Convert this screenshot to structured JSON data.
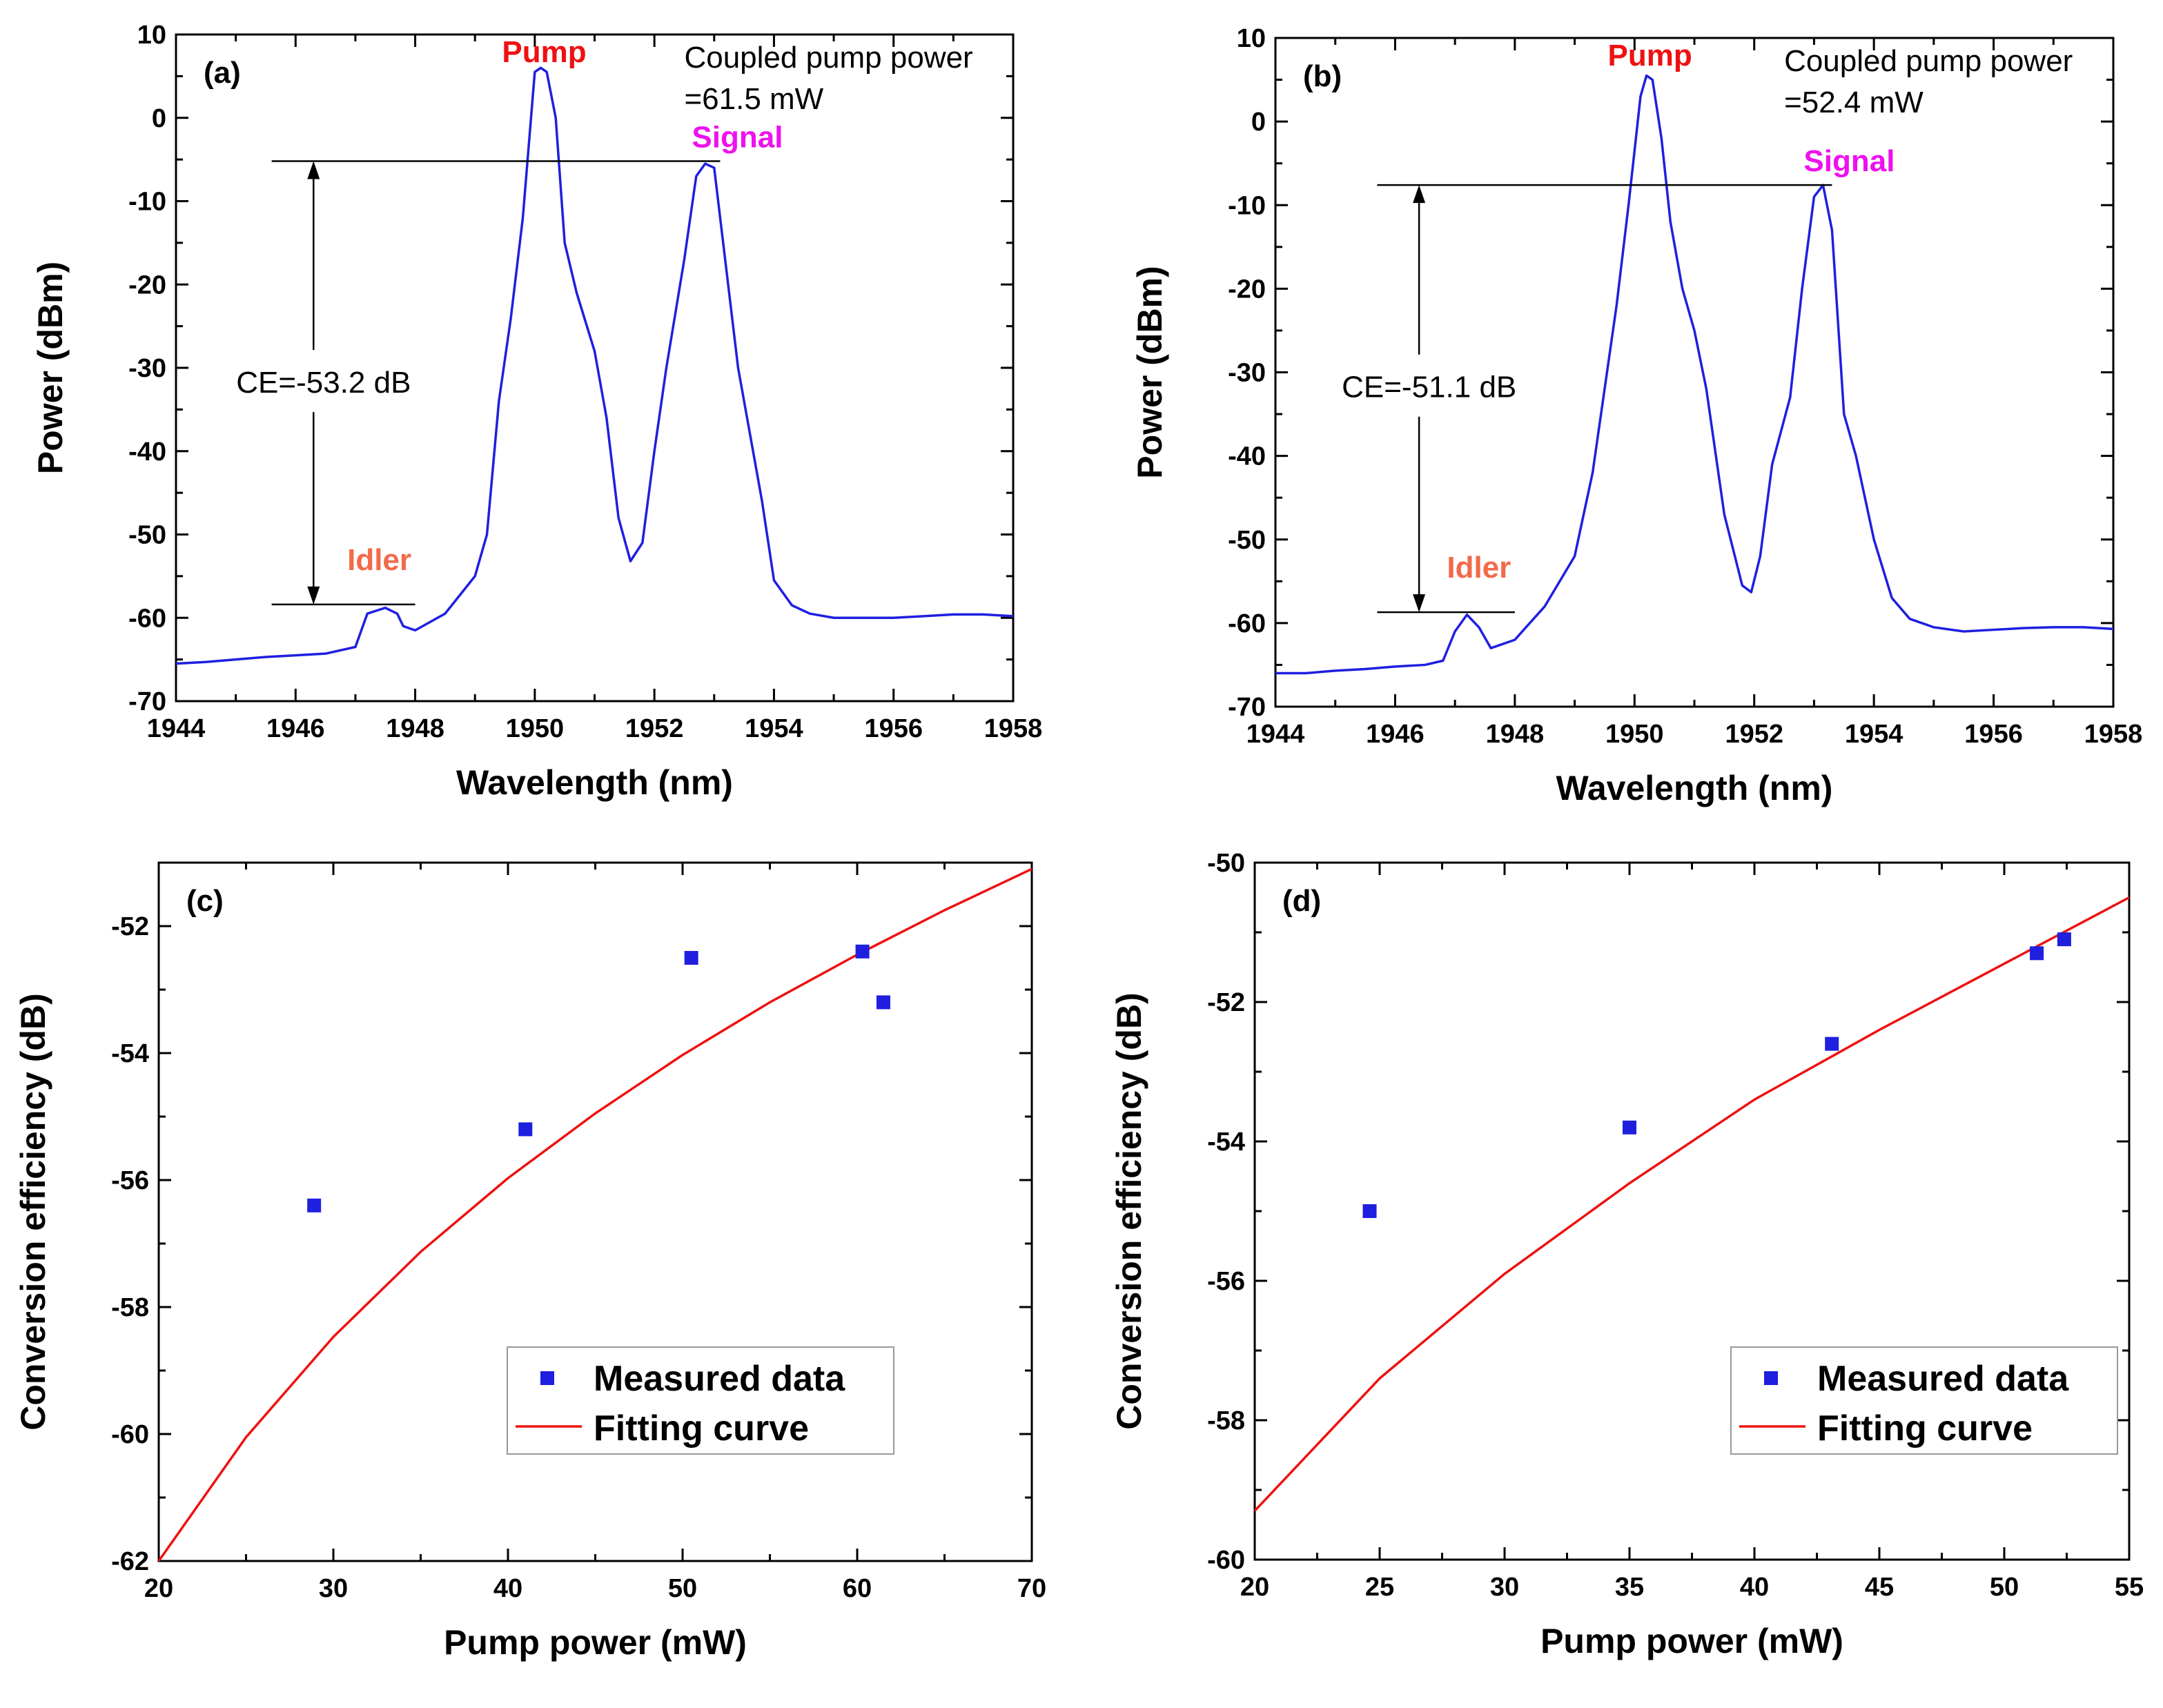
{
  "chart_data": [
    {
      "id": "a",
      "type": "line",
      "panel_label": "(a)",
      "xlabel": "Wavelength (nm)",
      "ylabel": "Power (dBm)",
      "xlim": [
        1944,
        1958
      ],
      "ylim": [
        -70,
        10
      ],
      "xticks": [
        1944,
        1946,
        1948,
        1950,
        1952,
        1954,
        1956,
        1958
      ],
      "yticks": [
        10,
        0,
        -10,
        -20,
        -30,
        -40,
        -50,
        -60,
        -70
      ],
      "series": [
        {
          "name": "spectrum",
          "color": "#1f1fe0",
          "x": [
            1944,
            1944.5,
            1945,
            1945.5,
            1946,
            1946.5,
            1947,
            1947.2,
            1947.5,
            1947.7,
            1947.8,
            1948,
            1948.5,
            1949,
            1949.2,
            1949.4,
            1949.6,
            1949.8,
            1950,
            1950.1,
            1950.2,
            1950.35,
            1950.5,
            1950.7,
            1951,
            1951.2,
            1951.4,
            1951.6,
            1951.8,
            1952,
            1952.2,
            1952.5,
            1952.7,
            1952.85,
            1953,
            1953.2,
            1953.4,
            1953.6,
            1953.8,
            1954,
            1954.3,
            1954.6,
            1955,
            1955.5,
            1956,
            1956.5,
            1957,
            1957.5,
            1958
          ],
          "y": [
            -65.5,
            -65.3,
            -65,
            -64.7,
            -64.5,
            -64.3,
            -63.5,
            -59.5,
            -58.8,
            -59.5,
            -61,
            -61.5,
            -59.5,
            -55,
            -50,
            -34,
            -24,
            -12,
            5.5,
            6,
            5.5,
            0,
            -15,
            -21,
            -28,
            -36,
            -48,
            -53.2,
            -51,
            -40,
            -30,
            -17,
            -7,
            -5.5,
            -6,
            -18,
            -30,
            -38,
            -46,
            -55.5,
            -58.5,
            -59.5,
            -60,
            -60,
            -60,
            -59.8,
            -59.6,
            -59.6,
            -59.8
          ]
        }
      ],
      "annotations": {
        "pump": "Pump",
        "signal": "Signal",
        "idler": "Idler",
        "coupled_line1": "Coupled pump power",
        "coupled_line2": "=61.5 mW",
        "ce": "CE=-53.2 dB",
        "ce_top_db": -5.2,
        "ce_bottom_db": -58.4,
        "ce_top_line_x": [
          1945.6,
          1953.1
        ],
        "ce_bottom_line_x": [
          1945.6,
          1948
        ],
        "arrow_x": 1946.3
      }
    },
    {
      "id": "b",
      "type": "line",
      "panel_label": "(b)",
      "xlabel": "Wavelength (nm)",
      "ylabel": "Power (dBm)",
      "xlim": [
        1944,
        1958
      ],
      "ylim": [
        -70,
        10
      ],
      "xticks": [
        1944,
        1946,
        1948,
        1950,
        1952,
        1954,
        1956,
        1958
      ],
      "yticks": [
        10,
        0,
        -10,
        -20,
        -30,
        -40,
        -50,
        -60,
        -70
      ],
      "series": [
        {
          "name": "spectrum",
          "color": "#1f1fe0",
          "x": [
            1944,
            1944.5,
            1945,
            1945.5,
            1946,
            1946.5,
            1946.8,
            1947,
            1947.2,
            1947.4,
            1947.6,
            1948,
            1948.5,
            1949,
            1949.3,
            1949.5,
            1949.7,
            1949.9,
            1950.1,
            1950.2,
            1950.3,
            1950.45,
            1950.6,
            1950.8,
            1951,
            1951.2,
            1951.5,
            1951.8,
            1951.95,
            1952.1,
            1952.3,
            1952.6,
            1952.8,
            1953,
            1953.15,
            1953.3,
            1953.5,
            1953.7,
            1954,
            1954.3,
            1954.6,
            1955,
            1955.5,
            1956,
            1956.5,
            1957,
            1957.5,
            1958
          ],
          "y": [
            -66,
            -66,
            -65.7,
            -65.5,
            -65.2,
            -65,
            -64.5,
            -61,
            -59,
            -60.5,
            -63,
            -62,
            -58,
            -52,
            -42,
            -32,
            -22,
            -10,
            3,
            5.5,
            5,
            -2,
            -12,
            -20,
            -25,
            -32,
            -47,
            -55.5,
            -56.3,
            -52,
            -41,
            -33,
            -20,
            -9,
            -7.6,
            -13,
            -35,
            -40,
            -50,
            -57,
            -59.5,
            -60.5,
            -61,
            -60.8,
            -60.6,
            -60.5,
            -60.5,
            -60.7
          ]
        }
      ],
      "annotations": {
        "pump": "Pump",
        "signal": "Signal",
        "idler": "Idler",
        "coupled_line1": "Coupled pump power",
        "coupled_line2": "=52.4 mW",
        "ce": "CE=-51.1 dB",
        "ce_top_db": -7.6,
        "ce_bottom_db": -58.7,
        "ce_top_line_x": [
          1945.7,
          1953.3
        ],
        "ce_bottom_line_x": [
          1945.7,
          1948
        ],
        "arrow_x": 1946.4
      }
    },
    {
      "id": "c",
      "type": "scatter",
      "panel_label": "(c)",
      "xlabel": "Pump power (mW)",
      "ylabel": "Conversion efficiency (dB)",
      "xlim": [
        20,
        70
      ],
      "ylim": [
        -62,
        -51
      ],
      "xticks": [
        20,
        30,
        40,
        50,
        60,
        70
      ],
      "yticks": [
        -52,
        -54,
        -56,
        -58,
        -60,
        -62
      ],
      "measured": {
        "name": "Measured data",
        "color": "#1f1fe0",
        "x": [
          28.9,
          41,
          50.5,
          60.3,
          61.5
        ],
        "y": [
          -56.4,
          -55.2,
          -52.5,
          -52.4,
          -53.2
        ]
      },
      "fit": {
        "name": "Fitting curve",
        "color": "#ee1111",
        "x": [
          20,
          25,
          30,
          35,
          40,
          45,
          50,
          55,
          60,
          65,
          70
        ],
        "y": [
          -62,
          -60.05,
          -58.47,
          -57.13,
          -55.97,
          -54.95,
          -54.03,
          -53.2,
          -52.45,
          -51.75,
          -51.1
        ]
      },
      "legend": {
        "measured": "Measured data",
        "fit": "Fitting curve"
      }
    },
    {
      "id": "d",
      "type": "scatter",
      "panel_label": "(d)",
      "xlabel": "Pump power (mW)",
      "ylabel": "Conversion efficiency (dB)",
      "xlim": [
        20,
        55
      ],
      "ylim": [
        -60,
        -50
      ],
      "xticks": [
        20,
        25,
        30,
        35,
        40,
        45,
        50,
        55
      ],
      "yticks": [
        -50,
        -52,
        -54,
        -56,
        -58,
        -60
      ],
      "measured": {
        "name": "Measured data",
        "color": "#1f1fe0",
        "x": [
          24.6,
          35,
          43.1,
          51.3,
          52.4
        ],
        "y": [
          -55,
          -53.8,
          -52.6,
          -51.3,
          -51.1
        ]
      },
      "fit": {
        "name": "Fitting curve",
        "color": "#ee1111",
        "x": [
          20,
          25,
          30,
          35,
          40,
          45,
          50,
          55
        ],
        "y": [
          -59.3,
          -57.4,
          -55.9,
          -54.6,
          -53.4,
          -52.4,
          -51.45,
          -50.5
        ]
      },
      "legend": {
        "measured": "Measured data",
        "fit": "Fitting curve"
      }
    }
  ],
  "colors": {
    "spectrum": "#1f1fe0",
    "pump": "#ee1111",
    "signal": "#ee11ee",
    "idler": "#f26a4a",
    "fit": "#ee1111",
    "measured": "#1f1fe0"
  }
}
